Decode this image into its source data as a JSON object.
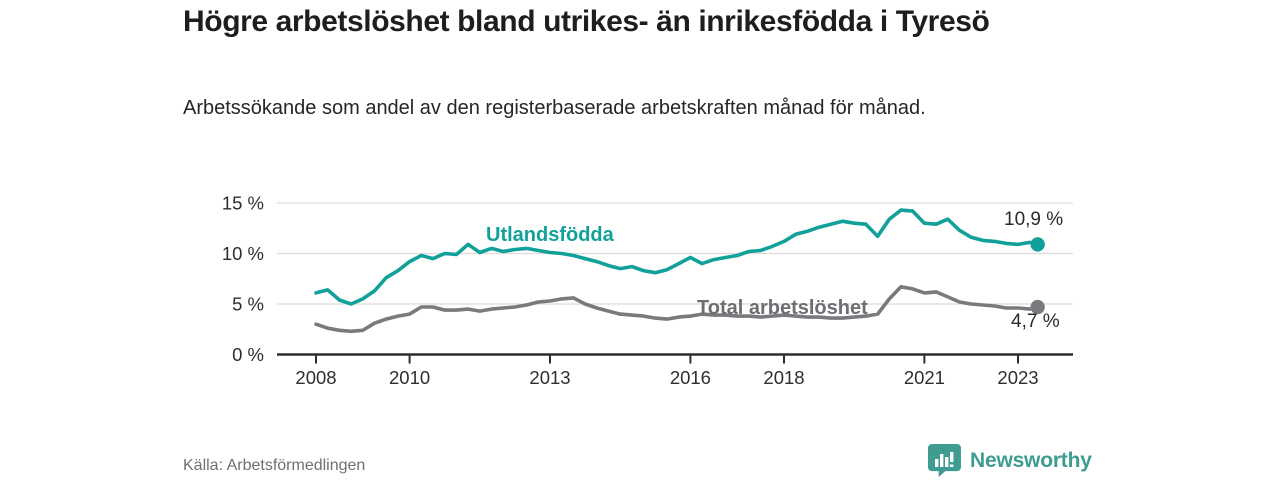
{
  "header": {
    "title": "Högre arbetslöshet bland utrikes- än inrikesfödda i Tyresö",
    "subtitle": "Arbetssökande som andel av den registerbaserade arbetskraften månad för månad."
  },
  "footer": {
    "source": "Källa: Arbetsförmedlingen",
    "brand_name": "Newsworthy",
    "brand_icon": "newsworthy-bar-chart-bubble-icon"
  },
  "colors": {
    "accent_teal": "#12A19A",
    "line_gray": "#7a7a7e",
    "title_text": "#1e1e1e",
    "axis_text": "#2e2e2e",
    "grid_line": "#dcdcdc",
    "source_text": "#707070",
    "brand_teal": "#3F9C91"
  },
  "chart_data": {
    "type": "line",
    "title": "Högre arbetslöshet bland utrikes- än inrikesfödda i Tyresö",
    "xlabel": "",
    "ylabel": "Arbetssökande som andel av den registerbaserade arbetskraften",
    "unit": "%",
    "grid": true,
    "legend_position": "inline-labels",
    "xlim": [
      2007.2,
      2024.2
    ],
    "ylim": [
      0,
      16.3
    ],
    "x_ticks": [
      2008,
      2010,
      2013,
      2016,
      2018,
      2021,
      2023
    ],
    "x_tick_labels": [
      "2008",
      "2010",
      "2013",
      "2016",
      "2018",
      "2021",
      "2023"
    ],
    "y_ticks": [
      0,
      5,
      10,
      15
    ],
    "y_tick_labels": [
      "0 %",
      "5 %",
      "10 %",
      "15 %"
    ],
    "x": [
      2008,
      2008.25,
      2008.5,
      2008.75,
      2009,
      2009.25,
      2009.5,
      2009.75,
      2010,
      2010.25,
      2010.5,
      2010.75,
      2011,
      2011.25,
      2011.5,
      2011.75,
      2012,
      2012.25,
      2012.5,
      2012.75,
      2013,
      2013.25,
      2013.5,
      2013.75,
      2014,
      2014.25,
      2014.5,
      2014.75,
      2015,
      2015.25,
      2015.5,
      2015.75,
      2016,
      2016.25,
      2016.5,
      2016.75,
      2017,
      2017.25,
      2017.5,
      2017.75,
      2018,
      2018.25,
      2018.5,
      2018.75,
      2019,
      2019.25,
      2019.5,
      2019.75,
      2020,
      2020.25,
      2020.5,
      2020.75,
      2021,
      2021.25,
      2021.5,
      2021.75,
      2022,
      2022.25,
      2022.5,
      2022.75,
      2023,
      2023.25,
      2023.42
    ],
    "series": [
      {
        "name": "Utlandsfödda",
        "color": "#12A19A",
        "label_color": "#12A19A",
        "end_value": 10.9,
        "end_label": "10,9 %",
        "values": [
          6.1,
          6.4,
          5.4,
          5.0,
          5.5,
          6.3,
          7.6,
          8.3,
          9.2,
          9.8,
          9.5,
          10.0,
          9.9,
          10.9,
          10.1,
          10.5,
          10.2,
          10.4,
          10.5,
          10.3,
          10.1,
          10.0,
          9.8,
          9.5,
          9.2,
          8.8,
          8.5,
          8.7,
          8.3,
          8.1,
          8.4,
          9.0,
          9.6,
          9.0,
          9.4,
          9.6,
          9.8,
          10.2,
          10.3,
          10.7,
          11.2,
          11.9,
          12.2,
          12.6,
          12.9,
          13.2,
          13.0,
          12.9,
          11.7,
          13.4,
          14.3,
          14.2,
          13.0,
          12.9,
          13.4,
          12.3,
          11.6,
          11.3,
          11.2,
          11.0,
          10.9,
          11.1,
          10.9
        ]
      },
      {
        "name": "Total arbetslöshet",
        "color": "#7a7a7e",
        "label_color": "#6d6d72",
        "end_value": 4.7,
        "end_label": "4,7 %",
        "values": [
          3.0,
          2.6,
          2.4,
          2.3,
          2.4,
          3.1,
          3.5,
          3.8,
          4.0,
          4.7,
          4.7,
          4.4,
          4.4,
          4.5,
          4.3,
          4.5,
          4.6,
          4.7,
          4.9,
          5.2,
          5.3,
          5.5,
          5.6,
          5.0,
          4.6,
          4.3,
          4.0,
          3.9,
          3.8,
          3.6,
          3.5,
          3.7,
          3.8,
          4.0,
          3.9,
          3.9,
          3.8,
          3.8,
          3.7,
          3.8,
          3.9,
          3.8,
          3.7,
          3.7,
          3.6,
          3.6,
          3.7,
          3.8,
          4.0,
          5.5,
          6.7,
          6.5,
          6.1,
          6.2,
          5.7,
          5.2,
          5.0,
          4.9,
          4.8,
          4.6,
          4.6,
          4.5,
          4.7
        ]
      }
    ]
  }
}
